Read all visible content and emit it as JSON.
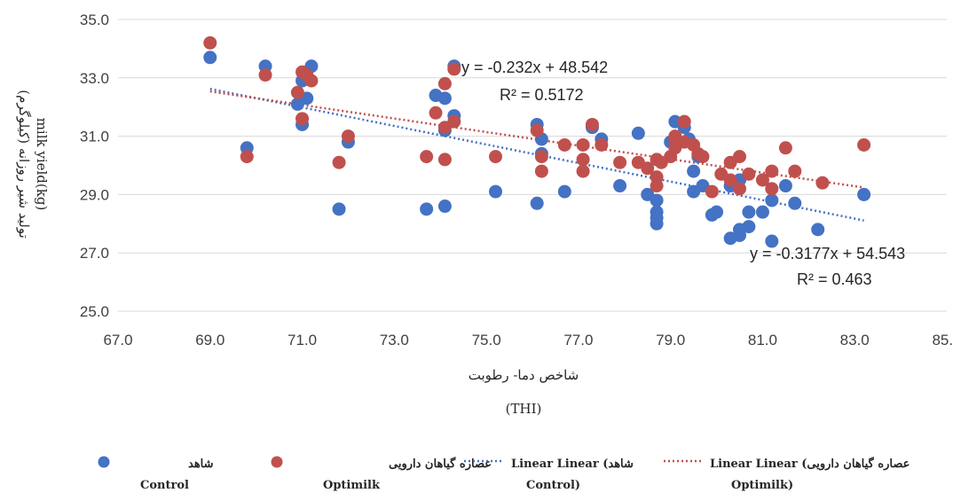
{
  "chart_data": {
    "type": "scatter",
    "title": "",
    "xlabel": "شاخص دما- رطوبت",
    "xlabel_sub": "(THI)",
    "ylabel": "تولید شیر روزانه (کیلوگرم)",
    "ylabel_sub": "milk yield(kg)",
    "xlim": [
      67,
      85
    ],
    "ylim": [
      25,
      35
    ],
    "x_ticks": [
      "67.0",
      "69.0",
      "71.0",
      "73.0",
      "75.0",
      "77.0",
      "79.0",
      "81.0",
      "83.0",
      "85.0"
    ],
    "y_ticks": [
      "25.0",
      "27.0",
      "29.0",
      "31.0",
      "33.0",
      "35.0"
    ],
    "grid": "horizontal",
    "legend_position": "bottom",
    "series": [
      {
        "name": "شاهد",
        "name_en": "Control",
        "color": "#4472C4",
        "points": [
          [
            69.0,
            33.7
          ],
          [
            69.8,
            30.6
          ],
          [
            70.2,
            33.4
          ],
          [
            70.9,
            32.1
          ],
          [
            71.0,
            32.9
          ],
          [
            71.0,
            31.4
          ],
          [
            71.1,
            32.3
          ],
          [
            71.2,
            33.4
          ],
          [
            71.8,
            28.5
          ],
          [
            72.0,
            30.8
          ],
          [
            73.7,
            28.5
          ],
          [
            73.9,
            32.4
          ],
          [
            74.1,
            28.6
          ],
          [
            74.1,
            32.3
          ],
          [
            74.1,
            31.2
          ],
          [
            74.3,
            33.4
          ],
          [
            74.3,
            31.7
          ],
          [
            75.2,
            29.1
          ],
          [
            76.1,
            31.4
          ],
          [
            76.2,
            30.9
          ],
          [
            76.2,
            30.4
          ],
          [
            76.1,
            28.7
          ],
          [
            76.7,
            29.1
          ],
          [
            77.3,
            31.3
          ],
          [
            77.5,
            30.9
          ],
          [
            77.9,
            29.3
          ],
          [
            78.3,
            31.1
          ],
          [
            78.5,
            29.0
          ],
          [
            78.7,
            28.8
          ],
          [
            78.7,
            28.4
          ],
          [
            78.7,
            28.2
          ],
          [
            78.7,
            28.0
          ],
          [
            79.0,
            30.8
          ],
          [
            79.1,
            31.5
          ],
          [
            79.3,
            31.3
          ],
          [
            79.4,
            30.9
          ],
          [
            79.5,
            29.1
          ],
          [
            79.5,
            29.8
          ],
          [
            79.6,
            30.3
          ],
          [
            79.7,
            29.3
          ],
          [
            79.9,
            28.3
          ],
          [
            80.0,
            28.4
          ],
          [
            80.3,
            27.5
          ],
          [
            80.3,
            29.3
          ],
          [
            80.5,
            29.5
          ],
          [
            80.5,
            27.8
          ],
          [
            80.5,
            27.6
          ],
          [
            80.7,
            28.4
          ],
          [
            80.7,
            27.9
          ],
          [
            81.0,
            28.4
          ],
          [
            81.2,
            27.4
          ],
          [
            81.2,
            28.8
          ],
          [
            81.5,
            29.3
          ],
          [
            81.7,
            28.7
          ],
          [
            82.2,
            27.8
          ],
          [
            83.2,
            29.0
          ]
        ]
      },
      {
        "name": "عصاره گیاهان دارویی",
        "name_en": "Optimilk",
        "color": "#C0504D",
        "points": [
          [
            69.0,
            34.2
          ],
          [
            69.8,
            30.3
          ],
          [
            70.2,
            33.1
          ],
          [
            70.9,
            32.5
          ],
          [
            71.0,
            33.2
          ],
          [
            71.0,
            31.6
          ],
          [
            71.1,
            33.1
          ],
          [
            71.2,
            32.9
          ],
          [
            71.8,
            30.1
          ],
          [
            72.0,
            31.0
          ],
          [
            73.7,
            30.3
          ],
          [
            73.9,
            31.8
          ],
          [
            74.1,
            30.2
          ],
          [
            74.1,
            32.8
          ],
          [
            74.1,
            31.3
          ],
          [
            74.3,
            33.3
          ],
          [
            74.3,
            31.5
          ],
          [
            75.2,
            30.3
          ],
          [
            76.1,
            31.2
          ],
          [
            76.2,
            30.3
          ],
          [
            76.2,
            29.8
          ],
          [
            76.7,
            30.7
          ],
          [
            77.1,
            30.7
          ],
          [
            77.1,
            30.2
          ],
          [
            77.1,
            29.8
          ],
          [
            77.3,
            31.4
          ],
          [
            77.5,
            30.7
          ],
          [
            77.9,
            30.1
          ],
          [
            78.3,
            30.1
          ],
          [
            78.5,
            29.9
          ],
          [
            78.7,
            29.3
          ],
          [
            78.7,
            29.6
          ],
          [
            78.7,
            30.2
          ],
          [
            78.8,
            30.1
          ],
          [
            79.0,
            30.3
          ],
          [
            79.1,
            30.6
          ],
          [
            79.1,
            30.9
          ],
          [
            79.1,
            31.0
          ],
          [
            79.3,
            31.5
          ],
          [
            79.3,
            30.8
          ],
          [
            79.5,
            30.7
          ],
          [
            79.6,
            30.4
          ],
          [
            79.7,
            30.3
          ],
          [
            79.9,
            29.1
          ],
          [
            80.1,
            29.7
          ],
          [
            80.3,
            30.1
          ],
          [
            80.3,
            29.5
          ],
          [
            80.5,
            29.2
          ],
          [
            80.5,
            30.3
          ],
          [
            80.7,
            29.7
          ],
          [
            81.0,
            29.5
          ],
          [
            81.2,
            29.2
          ],
          [
            81.2,
            29.8
          ],
          [
            81.5,
            30.6
          ],
          [
            81.7,
            29.8
          ],
          [
            82.3,
            29.4
          ],
          [
            83.2,
            30.7
          ]
        ]
      }
    ],
    "trendlines": [
      {
        "name": "Linear (شاهد",
        "name_en": "Control)",
        "series": "Control",
        "color": "#4472C4",
        "slope": -0.3177,
        "intercept": 54.543,
        "x_range": [
          69.0,
          83.2
        ],
        "equation": "y = -0.3177x + 54.543",
        "r2": "R² = 0.463"
      },
      {
        "name": "Linear (عصاره گیاهان دارویی",
        "name_en": "Optimilk)",
        "series": "Optimilk",
        "color": "#C0504D",
        "slope": -0.232,
        "intercept": 48.542,
        "x_range": [
          69.0,
          83.2
        ],
        "equation": "y = -0.232x + 48.542",
        "r2": "R² = 0.5172"
      }
    ]
  }
}
